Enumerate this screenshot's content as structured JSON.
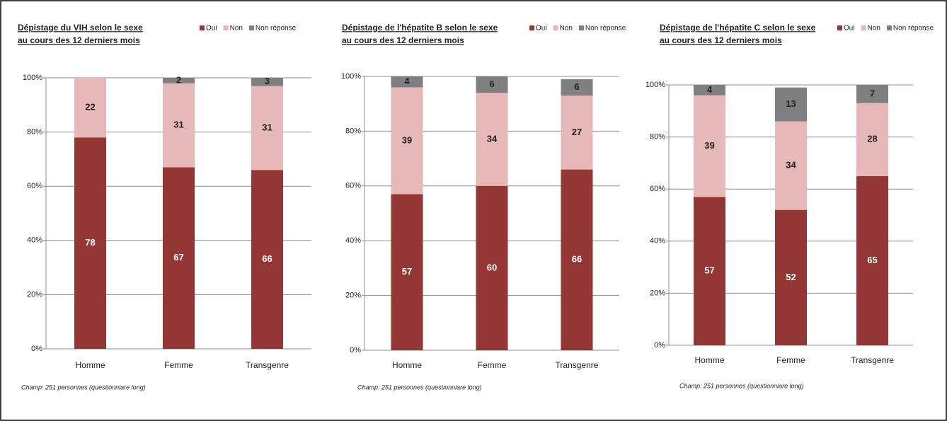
{
  "chart_data": [
    {
      "type": "stacked_bar",
      "title": [
        "Dépistage du VIH selon le sexe",
        "au cours des 12 derniers mois"
      ],
      "categories": [
        "Homme",
        "Femme",
        "Transgenre"
      ],
      "series": [
        {
          "name": "Oui",
          "color": "#943634",
          "values": [
            78,
            67,
            66
          ]
        },
        {
          "name": "Non",
          "color": "#e6b9b8",
          "values": [
            22,
            31,
            31
          ]
        },
        {
          "name": "Non réponse",
          "color": "#7f7f7f",
          "values": [
            null,
            2,
            3
          ]
        }
      ],
      "ylim": [
        0,
        100
      ],
      "yticks": [
        {
          "value": 0,
          "label": "0%"
        },
        {
          "value": 20,
          "label": "20%"
        },
        {
          "value": 40,
          "label": "40%"
        },
        {
          "value": 60,
          "label": "60%"
        },
        {
          "value": 80,
          "label": "80%"
        },
        {
          "value": 100,
          "label": "100%"
        }
      ],
      "grid": true,
      "note": "Champ: 251 personnes (questionniare long)"
    },
    {
      "type": "stacked_bar",
      "title": [
        "Dépistage de l'hépatite B selon le sexe",
        "au cours des 12 derniers mois"
      ],
      "categories": [
        "Homme",
        "Femme",
        "Transgenre"
      ],
      "series": [
        {
          "name": "Oui",
          "color": "#943634",
          "values": [
            57,
            60,
            66
          ]
        },
        {
          "name": "Non",
          "color": "#e6b9b8",
          "values": [
            39,
            34,
            27
          ]
        },
        {
          "name": "Non réponse",
          "color": "#7f7f7f",
          "values": [
            4,
            6,
            6
          ]
        }
      ],
      "ylim": [
        0,
        100
      ],
      "yticks": [
        {
          "value": 0,
          "label": "0%"
        },
        {
          "value": 20,
          "label": "20%"
        },
        {
          "value": 40,
          "label": "40%"
        },
        {
          "value": 60,
          "label": "60%"
        },
        {
          "value": 80,
          "label": "80%"
        },
        {
          "value": 100,
          "label": "100%"
        }
      ],
      "grid": true,
      "note": "Champ: 251 personnes (questionniare long)"
    },
    {
      "type": "stacked_bar",
      "title": [
        "Dépistage de l'hépatite C selon le sexe",
        "au cours des 12 derniers mois"
      ],
      "categories": [
        "Homme",
        "Femme",
        "Transgenre"
      ],
      "series": [
        {
          "name": "Oui",
          "color": "#943634",
          "values": [
            57,
            52,
            65
          ]
        },
        {
          "name": "Non",
          "color": "#e6b9b8",
          "values": [
            39,
            34,
            28
          ]
        },
        {
          "name": "Non réponse",
          "color": "#7f7f7f",
          "values": [
            4,
            13,
            7
          ]
        }
      ],
      "ylim": [
        0,
        100
      ],
      "yticks": [
        {
          "value": 0,
          "label": "0%"
        },
        {
          "value": 20,
          "label": "20%"
        },
        {
          "value": 40,
          "label": "40%"
        },
        {
          "value": 60,
          "label": "60%"
        },
        {
          "value": 80,
          "label": "80%"
        },
        {
          "value": 100,
          "label": "100%"
        }
      ],
      "grid": true,
      "note": "Champ: 251 personnes (questionniare long)"
    }
  ]
}
